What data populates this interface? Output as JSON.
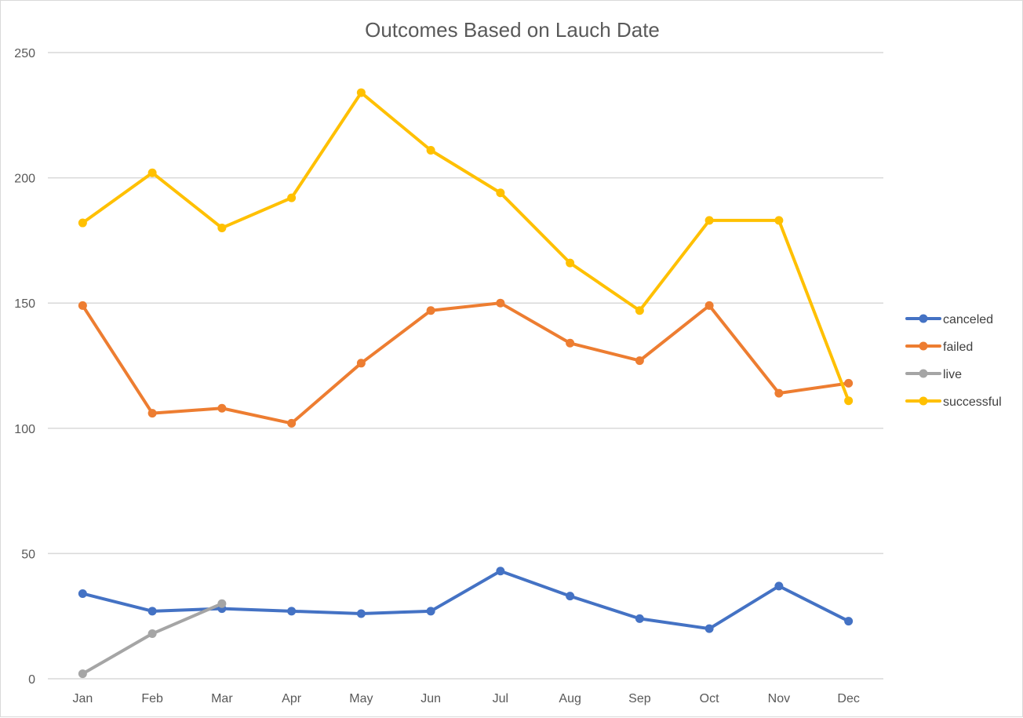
{
  "chart_data": {
    "type": "line",
    "title": "Outcomes Based on Lauch Date",
    "xlabel": "",
    "ylabel": "",
    "categories": [
      "Jan",
      "Feb",
      "Mar",
      "Apr",
      "May",
      "Jun",
      "Jul",
      "Aug",
      "Sep",
      "Oct",
      "Nov",
      "Dec"
    ],
    "ylim": [
      0,
      250
    ],
    "yticks": [
      0,
      50,
      100,
      150,
      200,
      250
    ],
    "grid": true,
    "legend_position": "right",
    "series": [
      {
        "name": "canceled",
        "color": "#4472c4",
        "values": [
          34,
          27,
          28,
          27,
          26,
          27,
          43,
          33,
          24,
          20,
          37,
          23
        ]
      },
      {
        "name": "failed",
        "color": "#ed7d31",
        "values": [
          149,
          106,
          108,
          102,
          126,
          147,
          150,
          134,
          127,
          149,
          114,
          118
        ]
      },
      {
        "name": "live",
        "color": "#a5a5a5",
        "values": [
          2,
          18,
          30,
          null,
          null,
          null,
          null,
          null,
          null,
          null,
          null,
          null
        ]
      },
      {
        "name": "successful",
        "color": "#ffc000",
        "values": [
          182,
          202,
          180,
          192,
          234,
          211,
          194,
          166,
          147,
          183,
          183,
          111
        ]
      }
    ]
  }
}
